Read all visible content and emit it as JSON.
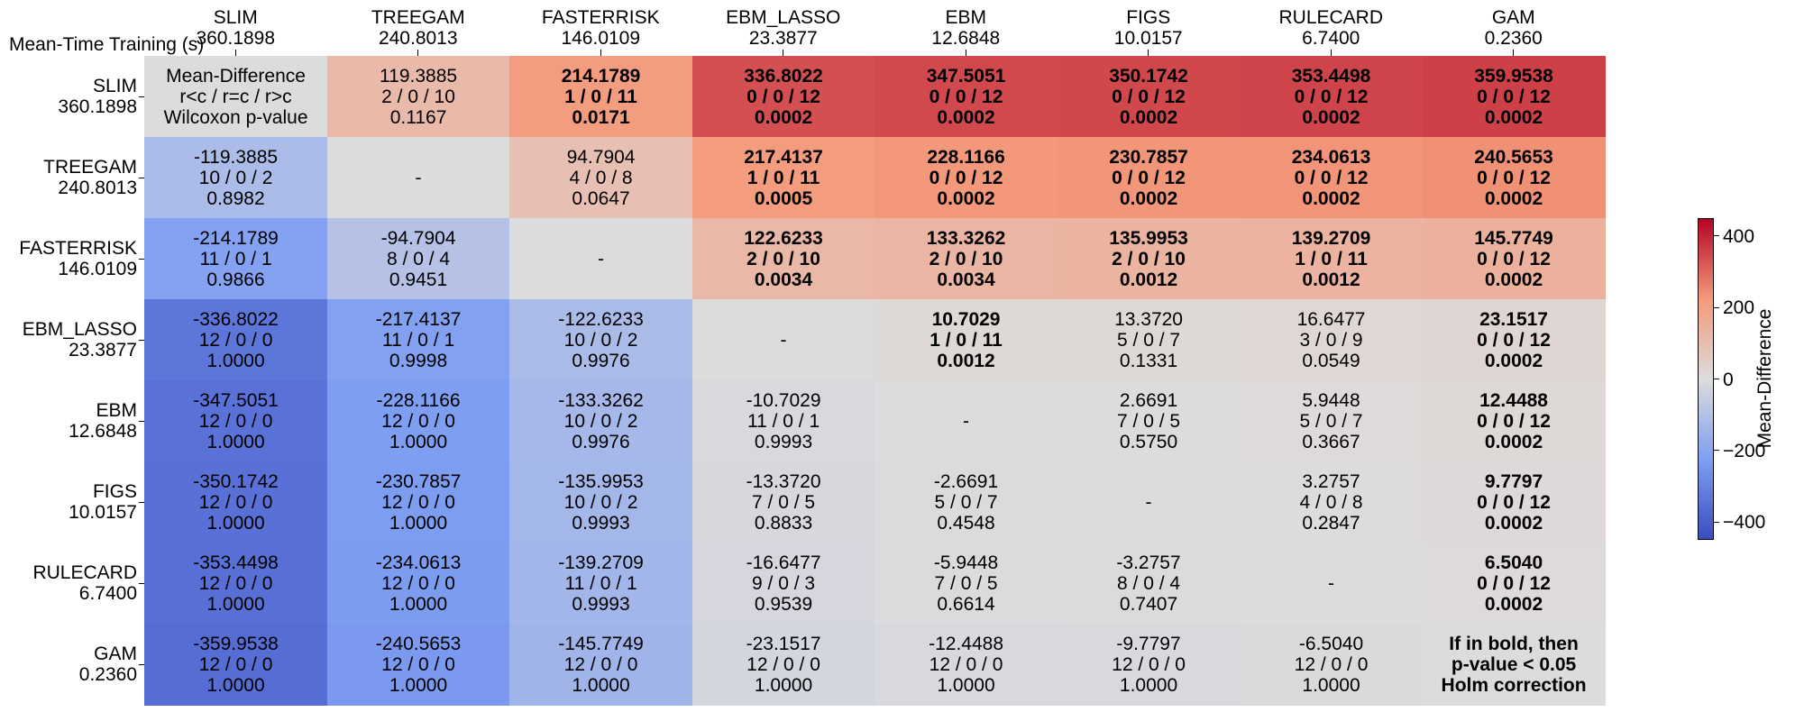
{
  "chart_data": {
    "type": "heatmap",
    "corner_label": "Mean-Time Training (s)",
    "labels": [
      "SLIM",
      "TREEGAM",
      "FASTERRISK",
      "EBM_LASSO",
      "EBM",
      "FIGS",
      "RULECARD",
      "GAM"
    ],
    "mean_times": [
      "360.1898",
      "240.8013",
      "146.0109",
      "23.3877",
      "12.6848",
      "10.0157",
      "6.7400",
      "0.2360"
    ],
    "legend_cell": [
      "Mean-Difference",
      "r<c / r=c / r>c",
      "Wilcoxon p-value"
    ],
    "note_cell": [
      "If in bold, then",
      "p-value < 0.05",
      "Holm correction"
    ],
    "diagonal_mark": "-",
    "colorbar": {
      "label": "Mean-Difference",
      "ticks": [
        "400",
        "200",
        "0",
        "−200",
        "−400"
      ],
      "tick_values": [
        400,
        200,
        0,
        -200,
        -400
      ],
      "range": [
        -450,
        450
      ]
    },
    "cells": [
      [
        null,
        {
          "md": "119.3885",
          "wtl": "2 / 0 / 10",
          "p": "0.1167",
          "v": 119.3885,
          "b": false
        },
        {
          "md": "214.1789",
          "wtl": "1 / 0 / 11",
          "p": "0.0171",
          "v": 214.1789,
          "b": true
        },
        {
          "md": "336.8022",
          "wtl": "0 / 0 / 12",
          "p": "0.0002",
          "v": 336.8022,
          "b": true
        },
        {
          "md": "347.5051",
          "wtl": "0 / 0 / 12",
          "p": "0.0002",
          "v": 347.5051,
          "b": true
        },
        {
          "md": "350.1742",
          "wtl": "0 / 0 / 12",
          "p": "0.0002",
          "v": 350.1742,
          "b": true
        },
        {
          "md": "353.4498",
          "wtl": "0 / 0 / 12",
          "p": "0.0002",
          "v": 353.4498,
          "b": true
        },
        {
          "md": "359.9538",
          "wtl": "0 / 0 / 12",
          "p": "0.0002",
          "v": 359.9538,
          "b": true
        }
      ],
      [
        {
          "md": "-119.3885",
          "wtl": "10 / 0 / 2",
          "p": "0.8982",
          "v": -119.3885,
          "b": false
        },
        null,
        {
          "md": "94.7904",
          "wtl": "4 / 0 / 8",
          "p": "0.0647",
          "v": 94.7904,
          "b": false
        },
        {
          "md": "217.4137",
          "wtl": "1 / 0 / 11",
          "p": "0.0005",
          "v": 217.4137,
          "b": true
        },
        {
          "md": "228.1166",
          "wtl": "0 / 0 / 12",
          "p": "0.0002",
          "v": 228.1166,
          "b": true
        },
        {
          "md": "230.7857",
          "wtl": "0 / 0 / 12",
          "p": "0.0002",
          "v": 230.7857,
          "b": true
        },
        {
          "md": "234.0613",
          "wtl": "0 / 0 / 12",
          "p": "0.0002",
          "v": 234.0613,
          "b": true
        },
        {
          "md": "240.5653",
          "wtl": "0 / 0 / 12",
          "p": "0.0002",
          "v": 240.5653,
          "b": true
        }
      ],
      [
        {
          "md": "-214.1789",
          "wtl": "11 / 0 / 1",
          "p": "0.9866",
          "v": -214.1789,
          "b": false
        },
        {
          "md": "-94.7904",
          "wtl": "8 / 0 / 4",
          "p": "0.9451",
          "v": -94.7904,
          "b": false
        },
        null,
        {
          "md": "122.6233",
          "wtl": "2 / 0 / 10",
          "p": "0.0034",
          "v": 122.6233,
          "b": true
        },
        {
          "md": "133.3262",
          "wtl": "2 / 0 / 10",
          "p": "0.0034",
          "v": 133.3262,
          "b": true
        },
        {
          "md": "135.9953",
          "wtl": "2 / 0 / 10",
          "p": "0.0012",
          "v": 135.9953,
          "b": true
        },
        {
          "md": "139.2709",
          "wtl": "1 / 0 / 11",
          "p": "0.0012",
          "v": 139.2709,
          "b": true
        },
        {
          "md": "145.7749",
          "wtl": "0 / 0 / 12",
          "p": "0.0002",
          "v": 145.7749,
          "b": true
        }
      ],
      [
        {
          "md": "-336.8022",
          "wtl": "12 / 0 / 0",
          "p": "1.0000",
          "v": -336.8022,
          "b": false
        },
        {
          "md": "-217.4137",
          "wtl": "11 / 0 / 1",
          "p": "0.9998",
          "v": -217.4137,
          "b": false
        },
        {
          "md": "-122.6233",
          "wtl": "10 / 0 / 2",
          "p": "0.9976",
          "v": -122.6233,
          "b": false
        },
        null,
        {
          "md": "10.7029",
          "wtl": "1 / 0 / 11",
          "p": "0.0012",
          "v": 10.7029,
          "b": true
        },
        {
          "md": "13.3720",
          "wtl": "5 / 0 / 7",
          "p": "0.1331",
          "v": 13.372,
          "b": false
        },
        {
          "md": "16.6477",
          "wtl": "3 / 0 / 9",
          "p": "0.0549",
          "v": 16.6477,
          "b": false
        },
        {
          "md": "23.1517",
          "wtl": "0 / 0 / 12",
          "p": "0.0002",
          "v": 23.1517,
          "b": true
        }
      ],
      [
        {
          "md": "-347.5051",
          "wtl": "12 / 0 / 0",
          "p": "1.0000",
          "v": -347.5051,
          "b": false
        },
        {
          "md": "-228.1166",
          "wtl": "12 / 0 / 0",
          "p": "1.0000",
          "v": -228.1166,
          "b": false
        },
        {
          "md": "-133.3262",
          "wtl": "10 / 0 / 2",
          "p": "0.9976",
          "v": -133.3262,
          "b": false
        },
        {
          "md": "-10.7029",
          "wtl": "11 / 0 / 1",
          "p": "0.9993",
          "v": -10.7029,
          "b": false
        },
        null,
        {
          "md": "2.6691",
          "wtl": "7 / 0 / 5",
          "p": "0.5750",
          "v": 2.6691,
          "b": false
        },
        {
          "md": "5.9448",
          "wtl": "5 / 0 / 7",
          "p": "0.3667",
          "v": 5.9448,
          "b": false
        },
        {
          "md": "12.4488",
          "wtl": "0 / 0 / 12",
          "p": "0.0002",
          "v": 12.4488,
          "b": true
        }
      ],
      [
        {
          "md": "-350.1742",
          "wtl": "12 / 0 / 0",
          "p": "1.0000",
          "v": -350.1742,
          "b": false
        },
        {
          "md": "-230.7857",
          "wtl": "12 / 0 / 0",
          "p": "1.0000",
          "v": -230.7857,
          "b": false
        },
        {
          "md": "-135.9953",
          "wtl": "10 / 0 / 2",
          "p": "0.9993",
          "v": -135.9953,
          "b": false
        },
        {
          "md": "-13.3720",
          "wtl": "7 / 0 / 5",
          "p": "0.8833",
          "v": -13.372,
          "b": false
        },
        {
          "md": "-2.6691",
          "wtl": "5 / 0 / 7",
          "p": "0.4548",
          "v": -2.6691,
          "b": false
        },
        null,
        {
          "md": "3.2757",
          "wtl": "4 / 0 / 8",
          "p": "0.2847",
          "v": 3.2757,
          "b": false
        },
        {
          "md": "9.7797",
          "wtl": "0 / 0 / 12",
          "p": "0.0002",
          "v": 9.7797,
          "b": true
        }
      ],
      [
        {
          "md": "-353.4498",
          "wtl": "12 / 0 / 0",
          "p": "1.0000",
          "v": -353.4498,
          "b": false
        },
        {
          "md": "-234.0613",
          "wtl": "12 / 0 / 0",
          "p": "1.0000",
          "v": -234.0613,
          "b": false
        },
        {
          "md": "-139.2709",
          "wtl": "11 / 0 / 1",
          "p": "0.9993",
          "v": -139.2709,
          "b": false
        },
        {
          "md": "-16.6477",
          "wtl": "9 / 0 / 3",
          "p": "0.9539",
          "v": -16.6477,
          "b": false
        },
        {
          "md": "-5.9448",
          "wtl": "7 / 0 / 5",
          "p": "0.6614",
          "v": -5.9448,
          "b": false
        },
        {
          "md": "-3.2757",
          "wtl": "8 / 0 / 4",
          "p": "0.7407",
          "v": -3.2757,
          "b": false
        },
        null,
        {
          "md": "6.5040",
          "wtl": "0 / 0 / 12",
          "p": "0.0002",
          "v": 6.504,
          "b": true
        }
      ],
      [
        {
          "md": "-359.9538",
          "wtl": "12 / 0 / 0",
          "p": "1.0000",
          "v": -359.9538,
          "b": false
        },
        {
          "md": "-240.5653",
          "wtl": "12 / 0 / 0",
          "p": "1.0000",
          "v": -240.5653,
          "b": false
        },
        {
          "md": "-145.7749",
          "wtl": "12 / 0 / 0",
          "p": "1.0000",
          "v": -145.7749,
          "b": false
        },
        {
          "md": "-23.1517",
          "wtl": "12 / 0 / 0",
          "p": "1.0000",
          "v": -23.1517,
          "b": false
        },
        {
          "md": "-12.4488",
          "wtl": "12 / 0 / 0",
          "p": "1.0000",
          "v": -12.4488,
          "b": false
        },
        {
          "md": "-9.7797",
          "wtl": "12 / 0 / 0",
          "p": "1.0000",
          "v": -9.7797,
          "b": false
        },
        {
          "md": "-6.5040",
          "wtl": "12 / 0 / 0",
          "p": "1.0000",
          "v": -6.504,
          "b": false
        },
        null
      ]
    ]
  }
}
